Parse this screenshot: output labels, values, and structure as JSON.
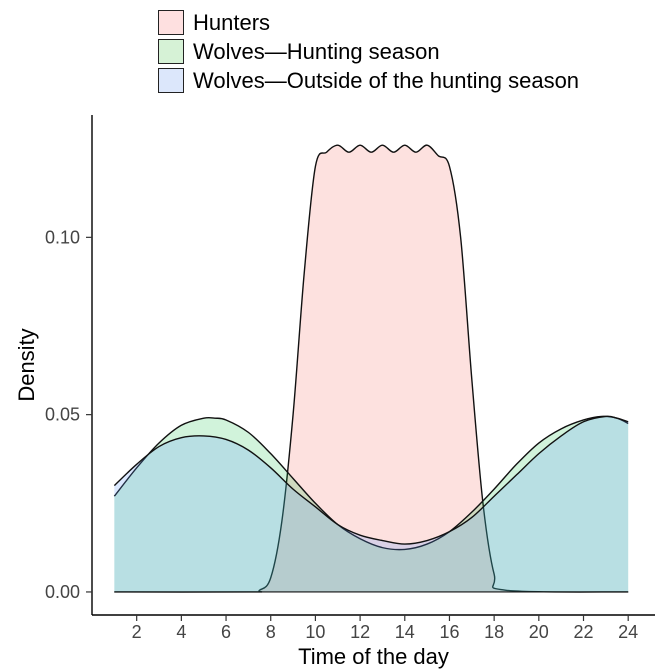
{
  "chart_data": {
    "type": "area",
    "title": "",
    "xlabel": "Time of the day",
    "ylabel": "Density",
    "xlim": [
      1,
      24
    ],
    "ylim": [
      0,
      0.125
    ],
    "x_ticks": [
      2,
      4,
      6,
      8,
      10,
      12,
      14,
      16,
      18,
      20,
      22,
      24
    ],
    "x_tick_labels": [
      "2",
      "4",
      "6",
      "8",
      "10",
      "12",
      "14",
      "16",
      "18",
      "20",
      "22",
      "24"
    ],
    "y_ticks": [
      0.0,
      0.05,
      0.1
    ],
    "y_tick_labels": [
      "0.00",
      "0.05",
      "0.10"
    ],
    "grid": false,
    "legend_position": "top",
    "series": [
      {
        "name": "Hunters",
        "color": "#F8766D",
        "x": [
          1,
          7,
          7.5,
          8,
          8.5,
          9,
          9.5,
          10,
          10.5,
          11,
          11.5,
          12,
          12.5,
          13,
          13.5,
          14,
          14.5,
          15,
          15.5,
          16,
          16.5,
          17,
          17.5,
          18,
          18.5,
          24
        ],
        "values": [
          0,
          0,
          0.0005,
          0.004,
          0.02,
          0.05,
          0.09,
          0.12,
          0.124,
          0.126,
          0.124,
          0.126,
          0.124,
          0.126,
          0.124,
          0.126,
          0.124,
          0.126,
          0.123,
          0.12,
          0.1,
          0.06,
          0.025,
          0.005,
          0.0005,
          0
        ]
      },
      {
        "name": "Wolves—Hunting season",
        "color": "#00BA38",
        "x": [
          1,
          2,
          3,
          4,
          5,
          5.5,
          6,
          7,
          8,
          9,
          10,
          11,
          12,
          13,
          14,
          15,
          16,
          17,
          18,
          19,
          20,
          21,
          22,
          22.8,
          23.5,
          24
        ],
        "values": [
          0.027,
          0.035,
          0.042,
          0.047,
          0.049,
          0.049,
          0.0485,
          0.045,
          0.039,
          0.032,
          0.025,
          0.019,
          0.015,
          0.0125,
          0.012,
          0.0135,
          0.017,
          0.0225,
          0.029,
          0.036,
          0.042,
          0.046,
          0.0485,
          0.0495,
          0.049,
          0.0475
        ]
      },
      {
        "name": "Wolves—Outside of the hunting season",
        "color": "#619CFF",
        "x": [
          1,
          2,
          3,
          4,
          5,
          6,
          7,
          8,
          9,
          10,
          11,
          12,
          13,
          14,
          15,
          16,
          17,
          18,
          19,
          20,
          21,
          22,
          23,
          23.5,
          24
        ],
        "values": [
          0.03,
          0.036,
          0.041,
          0.0435,
          0.044,
          0.043,
          0.04,
          0.035,
          0.029,
          0.024,
          0.019,
          0.016,
          0.0145,
          0.0135,
          0.0145,
          0.017,
          0.021,
          0.027,
          0.033,
          0.039,
          0.044,
          0.048,
          0.0495,
          0.049,
          0.048
        ]
      }
    ]
  }
}
